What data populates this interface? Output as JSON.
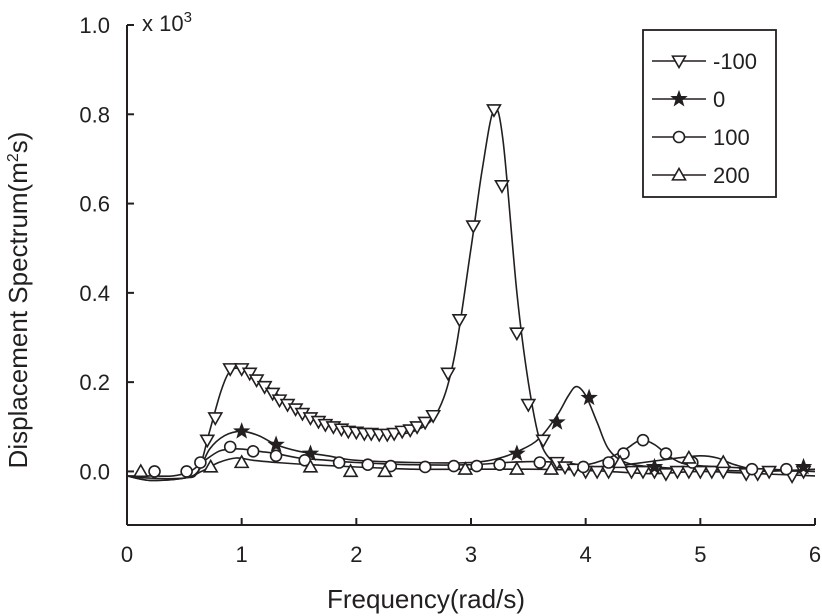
{
  "chart_data": {
    "type": "line",
    "xlabel": "Frequency(rad/s)",
    "ylabel": "Displacement Spectrum(m²s)",
    "ylabel_parts": [
      "Displacement Spectrum(m",
      "2",
      "s)"
    ],
    "multiplier": "x 10",
    "multiplier_exp": "3",
    "xlim": [
      0,
      6
    ],
    "ylim": [
      -0.12,
      1.0
    ],
    "x_ticks": [
      0,
      1,
      2,
      3,
      4,
      5,
      6
    ],
    "x_tick_labels": [
      "0",
      "1",
      "2",
      "3",
      "4",
      "5",
      "6"
    ],
    "y_ticks": [
      0.0,
      0.2,
      0.4,
      0.6,
      0.8,
      1.0
    ],
    "y_tick_labels": [
      "0.0",
      "0.2",
      "0.4",
      "0.6",
      "0.8",
      "1.0"
    ],
    "grid": false,
    "legend_position": "top-right",
    "series": [
      {
        "name": "-100",
        "marker": "triangle-down",
        "curve": [
          [
            0,
            -0.01
          ],
          [
            0.2,
            -0.02
          ],
          [
            0.5,
            -0.015
          ],
          [
            0.62,
            0.0
          ],
          [
            0.72,
            0.09
          ],
          [
            0.82,
            0.18
          ],
          [
            0.9,
            0.225
          ],
          [
            1.0,
            0.23
          ],
          [
            1.1,
            0.215
          ],
          [
            1.3,
            0.175
          ],
          [
            1.5,
            0.135
          ],
          [
            1.75,
            0.105
          ],
          [
            2.0,
            0.09
          ],
          [
            2.3,
            0.085
          ],
          [
            2.5,
            0.09
          ],
          [
            2.7,
            0.13
          ],
          [
            2.85,
            0.25
          ],
          [
            3.0,
            0.5
          ],
          [
            3.1,
            0.68
          ],
          [
            3.2,
            0.81
          ],
          [
            3.28,
            0.74
          ],
          [
            3.4,
            0.4
          ],
          [
            3.5,
            0.2
          ],
          [
            3.6,
            0.07
          ],
          [
            3.72,
            0.02
          ],
          [
            3.85,
            0.005
          ],
          [
            4.2,
            0.0
          ],
          [
            4.6,
            -0.005
          ],
          [
            5.0,
            0.0
          ],
          [
            5.5,
            -0.005
          ],
          [
            6.0,
            -0.01
          ]
        ],
        "markers": [
          [
            0.7,
            0.07
          ],
          [
            0.77,
            0.12
          ],
          [
            0.9,
            0.23
          ],
          [
            1.0,
            0.23
          ],
          [
            1.07,
            0.22
          ],
          [
            1.13,
            0.205
          ],
          [
            1.2,
            0.19
          ],
          [
            1.27,
            0.175
          ],
          [
            1.33,
            0.16
          ],
          [
            1.4,
            0.15
          ],
          [
            1.47,
            0.14
          ],
          [
            1.53,
            0.13
          ],
          [
            1.6,
            0.12
          ],
          [
            1.67,
            0.112
          ],
          [
            1.73,
            0.105
          ],
          [
            1.8,
            0.1
          ],
          [
            1.87,
            0.095
          ],
          [
            1.93,
            0.09
          ],
          [
            2.0,
            0.088
          ],
          [
            2.07,
            0.085
          ],
          [
            2.13,
            0.085
          ],
          [
            2.2,
            0.083
          ],
          [
            2.27,
            0.083
          ],
          [
            2.33,
            0.085
          ],
          [
            2.4,
            0.09
          ],
          [
            2.47,
            0.093
          ],
          [
            2.53,
            0.1
          ],
          [
            2.6,
            0.11
          ],
          [
            2.67,
            0.125
          ],
          [
            2.8,
            0.22
          ],
          [
            2.9,
            0.34
          ],
          [
            3.02,
            0.55
          ],
          [
            3.2,
            0.81
          ],
          [
            3.27,
            0.64
          ],
          [
            3.4,
            0.31
          ],
          [
            3.5,
            0.15
          ],
          [
            3.63,
            0.07
          ],
          [
            3.75,
            0.02
          ],
          [
            3.82,
            0.01
          ],
          [
            3.9,
            0.005
          ],
          [
            4.0,
            0.0
          ],
          [
            4.1,
            0.0
          ],
          [
            4.2,
            0.0
          ],
          [
            4.4,
            0.0
          ],
          [
            4.5,
            0.0
          ],
          [
            4.6,
            0.0
          ],
          [
            4.7,
            -0.005
          ],
          [
            4.8,
            0.0
          ],
          [
            4.9,
            0.0
          ],
          [
            5.0,
            0.0
          ],
          [
            5.1,
            0.0
          ],
          [
            5.2,
            0.0
          ],
          [
            5.4,
            -0.005
          ],
          [
            5.5,
            -0.005
          ],
          [
            5.6,
            0.0
          ],
          [
            5.8,
            -0.01
          ],
          [
            5.9,
            0.0
          ]
        ]
      },
      {
        "name": "0",
        "marker": "star",
        "curve": [
          [
            0,
            -0.01
          ],
          [
            0.2,
            -0.02
          ],
          [
            0.5,
            -0.015
          ],
          [
            0.62,
            0.0
          ],
          [
            0.72,
            0.05
          ],
          [
            0.85,
            0.08
          ],
          [
            1.0,
            0.09
          ],
          [
            1.15,
            0.08
          ],
          [
            1.3,
            0.06
          ],
          [
            1.5,
            0.045
          ],
          [
            1.75,
            0.035
          ],
          [
            2.0,
            0.025
          ],
          [
            2.5,
            0.02
          ],
          [
            3.0,
            0.02
          ],
          [
            3.25,
            0.03
          ],
          [
            3.45,
            0.05
          ],
          [
            3.6,
            0.075
          ],
          [
            3.75,
            0.125
          ],
          [
            3.85,
            0.17
          ],
          [
            3.92,
            0.19
          ],
          [
            4.0,
            0.17
          ],
          [
            4.1,
            0.11
          ],
          [
            4.2,
            0.05
          ],
          [
            4.35,
            0.02
          ],
          [
            4.6,
            0.01
          ],
          [
            5.0,
            0.005
          ],
          [
            5.5,
            0.0
          ],
          [
            6.0,
            0.005
          ]
        ],
        "markers": [
          [
            1.0,
            0.09
          ],
          [
            1.3,
            0.06
          ],
          [
            1.6,
            0.04
          ],
          [
            3.4,
            0.04
          ],
          [
            3.75,
            0.11
          ],
          [
            4.03,
            0.165
          ],
          [
            4.6,
            0.01
          ],
          [
            5.9,
            0.01
          ]
        ]
      },
      {
        "name": "100",
        "marker": "circle",
        "curve": [
          [
            0,
            -0.01
          ],
          [
            0.2,
            -0.01
          ],
          [
            0.4,
            -0.01
          ],
          [
            0.55,
            0.0
          ],
          [
            0.68,
            0.025
          ],
          [
            0.8,
            0.045
          ],
          [
            0.9,
            0.05
          ],
          [
            1.0,
            0.05
          ],
          [
            1.15,
            0.045
          ],
          [
            1.3,
            0.04
          ],
          [
            1.5,
            0.03
          ],
          [
            1.75,
            0.025
          ],
          [
            2.0,
            0.02
          ],
          [
            2.5,
            0.015
          ],
          [
            3.0,
            0.015
          ],
          [
            3.3,
            0.02
          ],
          [
            3.55,
            0.022
          ],
          [
            3.8,
            0.02
          ],
          [
            4.0,
            0.015
          ],
          [
            4.2,
            0.03
          ],
          [
            4.35,
            0.05
          ],
          [
            4.48,
            0.07
          ],
          [
            4.6,
            0.06
          ],
          [
            4.75,
            0.03
          ],
          [
            4.9,
            0.015
          ],
          [
            5.2,
            0.01
          ],
          [
            5.6,
            0.005
          ],
          [
            6.0,
            0.0
          ]
        ],
        "markers": [
          [
            0.24,
            0.0
          ],
          [
            0.52,
            0.0
          ],
          [
            0.64,
            0.02
          ],
          [
            0.9,
            0.055
          ],
          [
            1.1,
            0.045
          ],
          [
            1.3,
            0.035
          ],
          [
            1.55,
            0.025
          ],
          [
            1.85,
            0.02
          ],
          [
            2.1,
            0.015
          ],
          [
            2.3,
            0.012
          ],
          [
            2.6,
            0.01
          ],
          [
            2.85,
            0.012
          ],
          [
            3.05,
            0.012
          ],
          [
            3.25,
            0.015
          ],
          [
            3.6,
            0.02
          ],
          [
            3.98,
            0.01
          ],
          [
            4.2,
            0.02
          ],
          [
            4.33,
            0.04
          ],
          [
            4.5,
            0.07
          ],
          [
            4.7,
            0.04
          ],
          [
            4.93,
            0.02
          ],
          [
            5.45,
            0.005
          ],
          [
            5.75,
            0.005
          ]
        ]
      },
      {
        "name": "200",
        "marker": "triangle-up",
        "curve": [
          [
            0,
            -0.01
          ],
          [
            0.2,
            -0.015
          ],
          [
            0.5,
            -0.015
          ],
          [
            0.65,
            0.0
          ],
          [
            0.8,
            0.02
          ],
          [
            0.95,
            0.03
          ],
          [
            1.1,
            0.025
          ],
          [
            1.3,
            0.02
          ],
          [
            1.6,
            0.015
          ],
          [
            2.0,
            0.01
          ],
          [
            2.5,
            0.005
          ],
          [
            3.0,
            0.005
          ],
          [
            3.5,
            0.005
          ],
          [
            4.0,
            0.005
          ],
          [
            4.5,
            0.02
          ],
          [
            4.8,
            0.03
          ],
          [
            5.0,
            0.035
          ],
          [
            5.15,
            0.03
          ],
          [
            5.3,
            0.015
          ],
          [
            5.5,
            0.005
          ],
          [
            6.0,
            0.0
          ]
        ],
        "markers": [
          [
            0.12,
            0.0
          ],
          [
            0.73,
            0.01
          ],
          [
            1.0,
            0.02
          ],
          [
            1.6,
            0.01
          ],
          [
            1.95,
            0.0
          ],
          [
            2.25,
            0.0
          ],
          [
            2.95,
            0.005
          ],
          [
            3.4,
            0.005
          ],
          [
            3.7,
            0.005
          ],
          [
            4.3,
            0.02
          ],
          [
            4.9,
            0.03
          ],
          [
            5.2,
            0.02
          ]
        ]
      }
    ]
  }
}
